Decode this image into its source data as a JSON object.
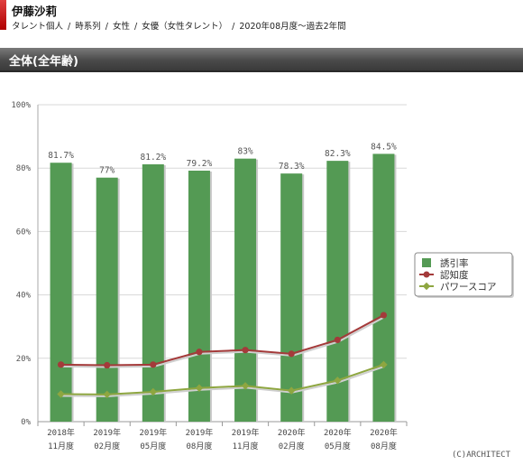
{
  "header": {
    "title": "伊藤沙莉",
    "breadcrumb": [
      "タレント個人",
      "時系列",
      "女性",
      "女優（女性タレント）",
      "2020年08月度～過去2年間"
    ]
  },
  "section": {
    "title": "全体(全年齢)"
  },
  "credit": "(C)ARCHITECT",
  "colors": {
    "bar": "#549a54",
    "awareness": "#a43a3a",
    "power": "#8ea640",
    "grid": "#d8d8d8"
  },
  "chart_data": {
    "type": "bar",
    "categories": [
      "2018年\n11月度",
      "2019年\n02月度",
      "2019年\n05月度",
      "2019年\n08月度",
      "2019年\n11月度",
      "2020年\n02月度",
      "2020年\n05月度",
      "2020年\n08月度"
    ],
    "ylim": [
      0,
      100
    ],
    "yticks": [
      "0%",
      "20%",
      "40%",
      "60%",
      "80%",
      "100%"
    ],
    "series": [
      {
        "name": "誘引率",
        "kind": "bar",
        "values": [
          81.7,
          77,
          81.2,
          79.2,
          83,
          78.3,
          82.3,
          84.5
        ],
        "labels": [
          "81.7%",
          "77%",
          "81.2%",
          "79.2%",
          "83%",
          "78.3%",
          "82.3%",
          "84.5%"
        ]
      },
      {
        "name": "認知度",
        "kind": "line",
        "values": [
          18,
          17.8,
          18,
          22,
          22.6,
          21.4,
          25.8,
          33.6
        ]
      },
      {
        "name": "パワースコア",
        "kind": "line",
        "values": [
          8.7,
          8.6,
          9.4,
          10.6,
          11.3,
          9.8,
          13,
          18
        ]
      }
    ]
  }
}
